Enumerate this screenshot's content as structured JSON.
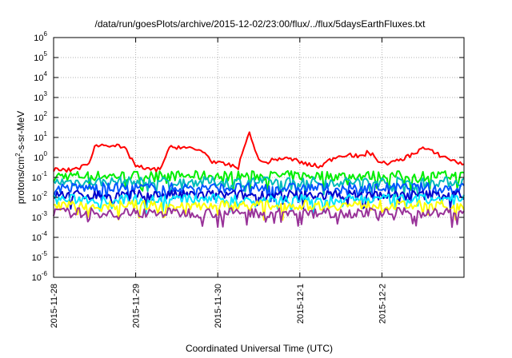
{
  "chart_data": {
    "type": "line",
    "title": "/data/run/goesPlots/archive/2015-12-02/23:00/flux/../flux/5daysEarthFluxes.txt",
    "xlabel": "Coordinated Universal Time (UTC)",
    "ylabel": {
      "base": "protons/cm",
      "sup": "2",
      "rest": "-s-sr-MeV"
    },
    "y_scale": "log",
    "ylim_exponents": [
      -6,
      6
    ],
    "y_tick_base": "10",
    "y_tick_exponents": [
      "6",
      "5",
      "4",
      "3",
      "2",
      "1",
      "0",
      "-1",
      "-2",
      "-3",
      "-4",
      "-5",
      "-6"
    ],
    "x_range_days": [
      "2015-11-28",
      "2015-12-03"
    ],
    "x_ticks": [
      "2015-11-28",
      "2015-11-29",
      "2015-11-30",
      "2015-12-1",
      "2015-12-2"
    ],
    "grid": true,
    "legend": "none",
    "series": [
      {
        "color": "#ff0000",
        "typical": 0.3,
        "points": [
          [
            "2015-11-28 00:00",
            0.25
          ],
          [
            "2015-11-28 04:00",
            0.22
          ],
          [
            "2015-11-28 07:00",
            0.3
          ],
          [
            "2015-11-28 10:00",
            0.4
          ],
          [
            "2015-11-28 12:00",
            3.5
          ],
          [
            "2015-11-28 15:00",
            4.5
          ],
          [
            "2015-11-28 18:00",
            4.0
          ],
          [
            "2015-11-28 21:00",
            2.5
          ],
          [
            "2015-11-29 00:00",
            0.4
          ],
          [
            "2015-11-29 03:00",
            0.25
          ],
          [
            "2015-11-29 07:00",
            0.25
          ],
          [
            "2015-11-29 10:00",
            3.0
          ],
          [
            "2015-11-29 13:00",
            3.5
          ],
          [
            "2015-11-29 17:00",
            2.5
          ],
          [
            "2015-11-29 20:00",
            2.0
          ],
          [
            "2015-11-29 22:00",
            0.7
          ],
          [
            "2015-11-30 00:00",
            0.5
          ],
          [
            "2015-11-30 04:00",
            0.4
          ],
          [
            "2015-11-30 06:00",
            0.3
          ],
          [
            "2015-11-30 09:00",
            20
          ],
          [
            "2015-11-30 11:00",
            2.0
          ],
          [
            "2015-11-30 13:00",
            0.5
          ],
          [
            "2015-11-30 18:00",
            0.9
          ],
          [
            "2015-11-30 22:00",
            0.8
          ],
          [
            "2015-12-01 02:00",
            0.45
          ],
          [
            "2015-12-01 06:00",
            0.35
          ],
          [
            "2015-12-01 10:00",
            1.0
          ],
          [
            "2015-12-01 14:00",
            1.5
          ],
          [
            "2015-12-01 18:00",
            1.0
          ],
          [
            "2015-12-01 20:00",
            2.0
          ],
          [
            "2015-12-02 00:00",
            0.5
          ],
          [
            "2015-12-02 04:00",
            0.6
          ],
          [
            "2015-12-02 08:00",
            1.2
          ],
          [
            "2015-12-02 12:00",
            3.0
          ],
          [
            "2015-12-02 16:00",
            1.5
          ],
          [
            "2015-12-02 20:00",
            0.8
          ],
          [
            "2015-12-02 23:00",
            0.5
          ]
        ]
      },
      {
        "color": "#00ee00",
        "typical": 0.12
      },
      {
        "color": "#00bbbb",
        "typical": 0.06
      },
      {
        "color": "#0055ff",
        "typical": 0.03
      },
      {
        "color": "#0000cc",
        "typical": 0.013
      },
      {
        "color": "#00e6ff",
        "typical": 0.008
      },
      {
        "color": "#ffff00",
        "typical": 0.004
      },
      {
        "color": "#993399",
        "typical": 0.0017
      }
    ]
  }
}
